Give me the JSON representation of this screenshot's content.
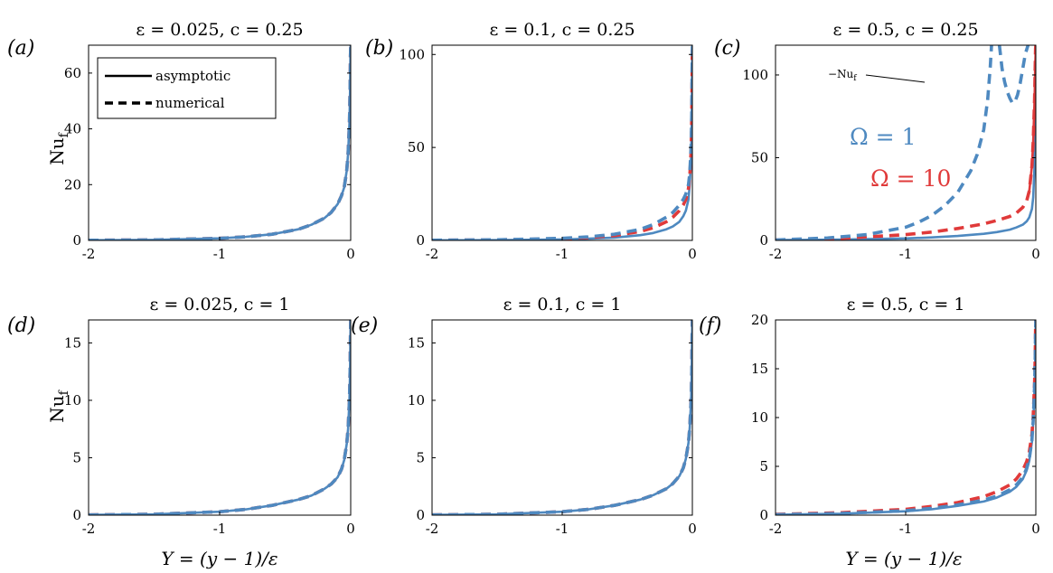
{
  "figure": {
    "colors": {
      "blue": "#4e89c0",
      "red": "#e03a3a",
      "axis": "#000000"
    },
    "legend": {
      "solid_label": "asymptotic",
      "dashed_label": "numerical"
    },
    "x_axis_label": "Y = (y − 1)/ε",
    "y_axis_label": "Nu",
    "y_axis_label_sub": "f",
    "annotation": {
      "text": "−Nu",
      "sub": "f"
    },
    "omega_labels": {
      "blue": "Ω = 1",
      "red": "Ω = 10"
    }
  },
  "chart_data": [
    {
      "type": "line",
      "label": "(a)",
      "title": "ε = 0.025, c = 0.25",
      "eps": 0.025,
      "c": 0.25,
      "xlim": [
        -2,
        0
      ],
      "ylim": [
        0,
        70
      ],
      "xticks": [
        -2,
        -1,
        0
      ],
      "xtick_labels": [
        "-2",
        "-1",
        "0"
      ],
      "yticks": [
        0,
        20,
        40,
        60
      ],
      "ytick_labels": [
        "0",
        "20",
        "40",
        "60"
      ],
      "series": [
        {
          "name": "asymptotic",
          "omega": 1,
          "style": "solid",
          "color": "blue",
          "x": [
            -2,
            -1.5,
            -1,
            -0.8,
            -0.6,
            -0.4,
            -0.3,
            -0.2,
            -0.15,
            -0.1,
            -0.07,
            -0.05,
            -0.03,
            -0.02,
            -0.01,
            -0.005,
            -0.002,
            0
          ],
          "y": [
            0.05,
            0.2,
            0.75,
            1.3,
            2.2,
            4,
            5.6,
            8,
            10,
            13,
            16,
            19,
            25,
            31,
            42,
            54,
            66,
            70
          ]
        },
        {
          "name": "numerical",
          "omega": 10,
          "style": "dashed",
          "color": "red",
          "x": [
            -2,
            -1.5,
            -1,
            -0.8,
            -0.6,
            -0.4,
            -0.3,
            -0.2,
            -0.15,
            -0.1,
            -0.07,
            -0.05,
            -0.03,
            -0.02,
            -0.01,
            -0.005,
            -0.002,
            0
          ],
          "y": [
            0.05,
            0.2,
            0.75,
            1.3,
            2.2,
            4,
            5.6,
            8,
            10,
            13,
            16,
            19,
            25,
            31,
            42,
            54,
            66,
            70
          ]
        },
        {
          "name": "numerical",
          "omega": 1,
          "style": "dashed",
          "color": "blue",
          "x": [
            -2,
            -1.5,
            -1,
            -0.8,
            -0.6,
            -0.4,
            -0.3,
            -0.2,
            -0.15,
            -0.1,
            -0.07,
            -0.05,
            -0.03,
            -0.02,
            -0.01,
            -0.005,
            -0.002,
            0
          ],
          "y": [
            0.05,
            0.2,
            0.75,
            1.3,
            2.2,
            4,
            5.6,
            8,
            10,
            13,
            16,
            19,
            25,
            31,
            42,
            54,
            66,
            70
          ]
        }
      ]
    },
    {
      "type": "line",
      "label": "(b)",
      "title": "ε = 0.1, c = 0.25",
      "eps": 0.1,
      "c": 0.25,
      "xlim": [
        -2,
        0
      ],
      "ylim": [
        0,
        105
      ],
      "xticks": [
        -2,
        -1,
        0
      ],
      "xtick_labels": [
        "-2",
        "-1",
        "0"
      ],
      "yticks": [
        0,
        50,
        100
      ],
      "ytick_labels": [
        "0",
        "50",
        "100"
      ],
      "series": [
        {
          "name": "asymptotic",
          "omega": 1,
          "style": "solid",
          "color": "blue",
          "x": [
            -2,
            -1.5,
            -1,
            -0.8,
            -0.6,
            -0.4,
            -0.3,
            -0.2,
            -0.15,
            -0.1,
            -0.07,
            -0.05,
            -0.03,
            -0.02,
            -0.01,
            -0.005,
            -0.002,
            0
          ],
          "y": [
            0.05,
            0.15,
            0.55,
            0.9,
            1.5,
            2.8,
            4,
            6,
            7.5,
            10,
            13,
            16,
            22,
            30,
            45,
            65,
            90,
            105
          ]
        },
        {
          "name": "numerical",
          "omega": 10,
          "style": "dashed",
          "color": "red",
          "x": [
            -2,
            -1.5,
            -1,
            -0.8,
            -0.6,
            -0.4,
            -0.3,
            -0.2,
            -0.15,
            -0.1,
            -0.07,
            -0.05,
            -0.03,
            -0.02,
            -0.01,
            -0.005,
            -0.002,
            0
          ],
          "y": [
            0.08,
            0.3,
            0.9,
            1.5,
            2.6,
            4.8,
            6.8,
            10,
            12.5,
            16,
            19,
            22,
            28,
            34,
            48,
            66,
            90,
            105
          ]
        },
        {
          "name": "numerical",
          "omega": 1,
          "style": "dashed",
          "color": "blue",
          "x": [
            -2,
            -1.5,
            -1,
            -0.8,
            -0.6,
            -0.4,
            -0.3,
            -0.2,
            -0.15,
            -0.1,
            -0.07,
            -0.05,
            -0.03,
            -0.02,
            -0.01,
            -0.005,
            -0.002,
            0
          ],
          "y": [
            0.1,
            0.35,
            1.1,
            1.9,
            3.3,
            6,
            8.5,
            12.5,
            15,
            19,
            22,
            25,
            30,
            36,
            50,
            68,
            92,
            105
          ]
        }
      ]
    },
    {
      "type": "line",
      "label": "(c)",
      "title": "ε = 0.5, c = 0.25",
      "eps": 0.5,
      "c": 0.25,
      "xlim": [
        -2,
        0
      ],
      "ylim": [
        0,
        118
      ],
      "xticks": [
        -2,
        -1,
        0
      ],
      "xtick_labels": [
        "-2",
        "-1",
        "0"
      ],
      "yticks": [
        0,
        50,
        100
      ],
      "ytick_labels": [
        "0",
        "50",
        "100"
      ],
      "series": [
        {
          "name": "asymptotic",
          "omega": 1,
          "style": "solid",
          "color": "blue",
          "x": [
            -2,
            -1.5,
            -1,
            -0.8,
            -0.6,
            -0.4,
            -0.3,
            -0.2,
            -0.15,
            -0.1,
            -0.07,
            -0.05,
            -0.03,
            -0.02,
            -0.01,
            -0.005,
            -0.002,
            0
          ],
          "y": [
            0.2,
            0.5,
            1.2,
            1.8,
            2.7,
            4,
            5,
            6.5,
            7.8,
            9.5,
            11.5,
            14,
            19,
            26,
            45,
            70,
            100,
            118
          ]
        },
        {
          "name": "asymptotic",
          "omega": 10,
          "style": "solid",
          "color": "red",
          "x": [
            -0.05,
            -0.03,
            -0.02,
            -0.01,
            -0.005,
            0
          ],
          "y": [
            30,
            45,
            60,
            85,
            105,
            118
          ]
        },
        {
          "name": "numerical",
          "omega": 10,
          "style": "dashed",
          "color": "red",
          "x": [
            -2,
            -1.5,
            -1,
            -0.8,
            -0.6,
            -0.4,
            -0.3,
            -0.2,
            -0.15,
            -0.1,
            -0.07,
            -0.05,
            -0.03,
            -0.02,
            -0.01,
            -0.005,
            -0.002,
            0
          ],
          "y": [
            0.3,
            1.2,
            3.5,
            5,
            7.2,
            10,
            12,
            14.5,
            16.5,
            20,
            24,
            30,
            45,
            60,
            85,
            105,
            116,
            118
          ]
        },
        {
          "name": "numerical",
          "omega": 1,
          "style": "dashed",
          "color": "blue",
          "x": [
            -2,
            -1.6,
            -1.3,
            -1,
            -0.9,
            -0.8,
            -0.7,
            -0.6,
            -0.5,
            -0.45,
            -0.4,
            -0.37,
            -0.35,
            -0.34
          ],
          "y": [
            0.3,
            1.5,
            3.5,
            8,
            11,
            15,
            21,
            29,
            42,
            52,
            67,
            85,
            105,
            118
          ]
        },
        {
          "name": "numerical (−Nu_f branch)",
          "omega": 1,
          "style": "dashed",
          "color": "blue",
          "x": [
            -0.28,
            -0.26,
            -0.24,
            -0.22,
            -0.2,
            -0.18,
            -0.16,
            -0.14,
            -0.12,
            -0.1,
            -0.08,
            -0.06
          ],
          "y": [
            118,
            104,
            96,
            90,
            86,
            83,
            84,
            88,
            95,
            104,
            113,
            118
          ]
        }
      ]
    },
    {
      "type": "line",
      "label": "(d)",
      "title": "ε = 0.025, c = 1",
      "eps": 0.025,
      "c": 1,
      "xlim": [
        -2,
        0
      ],
      "ylim": [
        0,
        17
      ],
      "xticks": [
        -2,
        -1,
        0
      ],
      "xtick_labels": [
        "-2",
        "-1",
        "0"
      ],
      "yticks": [
        0,
        5,
        10,
        15
      ],
      "ytick_labels": [
        "0",
        "5",
        "10",
        "15"
      ],
      "series": [
        {
          "name": "asymptotic",
          "omega": 1,
          "style": "solid",
          "color": "blue",
          "x": [
            -2,
            -1.5,
            -1,
            -0.8,
            -0.6,
            -0.4,
            -0.3,
            -0.2,
            -0.15,
            -0.1,
            -0.07,
            -0.05,
            -0.03,
            -0.02,
            -0.01,
            -0.005,
            -0.002,
            0
          ],
          "y": [
            0.02,
            0.08,
            0.3,
            0.5,
            0.85,
            1.35,
            1.7,
            2.3,
            2.7,
            3.3,
            4,
            4.8,
            6.2,
            7.5,
            10,
            12.5,
            15.5,
            17
          ]
        },
        {
          "name": "numerical",
          "omega": 10,
          "style": "dashed",
          "color": "red",
          "x": [
            -2,
            -1.5,
            -1,
            -0.8,
            -0.6,
            -0.4,
            -0.3,
            -0.2,
            -0.15,
            -0.1,
            -0.07,
            -0.05,
            -0.03,
            -0.02,
            -0.01,
            -0.005,
            -0.002,
            0
          ],
          "y": [
            0.02,
            0.08,
            0.3,
            0.5,
            0.85,
            1.35,
            1.7,
            2.3,
            2.7,
            3.3,
            4,
            4.8,
            6.2,
            7.5,
            10,
            12.5,
            15.5,
            17
          ]
        },
        {
          "name": "numerical",
          "omega": 1,
          "style": "dashed",
          "color": "blue",
          "x": [
            -2,
            -1.5,
            -1,
            -0.8,
            -0.6,
            -0.4,
            -0.3,
            -0.2,
            -0.15,
            -0.1,
            -0.07,
            -0.05,
            -0.03,
            -0.02,
            -0.01,
            -0.005,
            -0.002,
            0
          ],
          "y": [
            0.02,
            0.08,
            0.3,
            0.5,
            0.85,
            1.35,
            1.7,
            2.3,
            2.7,
            3.3,
            4,
            4.8,
            6.2,
            7.5,
            10,
            12.5,
            15.5,
            17
          ]
        }
      ]
    },
    {
      "type": "line",
      "label": "(e)",
      "title": "ε = 0.1, c = 1",
      "eps": 0.1,
      "c": 1,
      "xlim": [
        -2,
        0
      ],
      "ylim": [
        0,
        17
      ],
      "xticks": [
        -2,
        -1,
        0
      ],
      "xtick_labels": [
        "-2",
        "-1",
        "0"
      ],
      "yticks": [
        0,
        5,
        10,
        15
      ],
      "ytick_labels": [
        "0",
        "5",
        "10",
        "15"
      ],
      "series": [
        {
          "name": "asymptotic",
          "omega": 1,
          "style": "solid",
          "color": "blue",
          "x": [
            -2,
            -1.5,
            -1,
            -0.8,
            -0.6,
            -0.4,
            -0.3,
            -0.2,
            -0.15,
            -0.1,
            -0.07,
            -0.05,
            -0.03,
            -0.02,
            -0.01,
            -0.005,
            -0.002,
            0
          ],
          "y": [
            0.02,
            0.08,
            0.3,
            0.5,
            0.85,
            1.35,
            1.75,
            2.3,
            2.75,
            3.4,
            4.1,
            4.9,
            6.3,
            7.6,
            10,
            12.5,
            15.5,
            17
          ]
        },
        {
          "name": "numerical",
          "omega": 10,
          "style": "dashed",
          "color": "red",
          "x": [
            -2,
            -1.5,
            -1,
            -0.8,
            -0.6,
            -0.4,
            -0.3,
            -0.2,
            -0.15,
            -0.1,
            -0.07,
            -0.05,
            -0.03,
            -0.02,
            -0.01,
            -0.005,
            -0.002,
            0
          ],
          "y": [
            0.02,
            0.08,
            0.3,
            0.5,
            0.85,
            1.35,
            1.75,
            2.3,
            2.75,
            3.4,
            4.1,
            4.9,
            6.3,
            7.6,
            10,
            12.5,
            15.5,
            17
          ]
        },
        {
          "name": "numerical",
          "omega": 1,
          "style": "dashed",
          "color": "blue",
          "x": [
            -2,
            -1.5,
            -1,
            -0.8,
            -0.6,
            -0.4,
            -0.3,
            -0.2,
            -0.15,
            -0.1,
            -0.07,
            -0.05,
            -0.03,
            -0.02,
            -0.01,
            -0.005,
            -0.002,
            0
          ],
          "y": [
            0.02,
            0.08,
            0.3,
            0.5,
            0.85,
            1.35,
            1.75,
            2.3,
            2.75,
            3.4,
            4.1,
            4.9,
            6.3,
            7.6,
            10,
            12.5,
            15.5,
            17
          ]
        }
      ]
    },
    {
      "type": "line",
      "label": "(f)",
      "title": "ε = 0.5, c = 1",
      "eps": 0.5,
      "c": 1,
      "xlim": [
        -2,
        0
      ],
      "ylim": [
        0,
        20
      ],
      "xticks": [
        -2,
        -1,
        0
      ],
      "xtick_labels": [
        "-2",
        "-1",
        "0"
      ],
      "yticks": [
        0,
        5,
        10,
        15,
        20
      ],
      "ytick_labels": [
        "0",
        "5",
        "10",
        "15",
        "20"
      ],
      "series": [
        {
          "name": "asymptotic",
          "omega": 1,
          "style": "solid",
          "color": "blue",
          "x": [
            -2,
            -1.5,
            -1,
            -0.8,
            -0.6,
            -0.4,
            -0.3,
            -0.2,
            -0.15,
            -0.1,
            -0.07,
            -0.05,
            -0.03,
            -0.02,
            -0.01,
            -0.005,
            -0.002,
            0
          ],
          "y": [
            0.05,
            0.15,
            0.4,
            0.6,
            0.95,
            1.4,
            1.8,
            2.4,
            2.9,
            3.7,
            4.6,
            5.6,
            7.5,
            9.5,
            13,
            16,
            19,
            20
          ]
        },
        {
          "name": "numerical",
          "omega": 10,
          "style": "dashed",
          "color": "red",
          "x": [
            -2,
            -1.5,
            -1,
            -0.8,
            -0.6,
            -0.4,
            -0.3,
            -0.2,
            -0.15,
            -0.1,
            -0.07,
            -0.05,
            -0.03,
            -0.02,
            -0.01,
            -0.005,
            -0.002,
            0
          ],
          "y": [
            0.08,
            0.25,
            0.6,
            0.9,
            1.3,
            1.9,
            2.4,
            3.1,
            3.7,
            4.6,
            5.5,
            6.5,
            8.3,
            10.2,
            13.5,
            16.3,
            19,
            20
          ]
        },
        {
          "name": "numerical",
          "omega": 1,
          "style": "dashed",
          "color": "blue",
          "x": [
            -2,
            -1.5,
            -1,
            -0.8,
            -0.6,
            -0.4,
            -0.3,
            -0.2,
            -0.15,
            -0.1,
            -0.07,
            -0.05,
            -0.03,
            -0.02,
            -0.01,
            -0.005,
            -0.002,
            0
          ],
          "y": [
            0.06,
            0.18,
            0.45,
            0.7,
            1.05,
            1.55,
            1.95,
            2.6,
            3.1,
            3.9,
            4.8,
            5.8,
            7.7,
            9.7,
            13.2,
            16.1,
            19,
            20
          ]
        }
      ]
    }
  ]
}
